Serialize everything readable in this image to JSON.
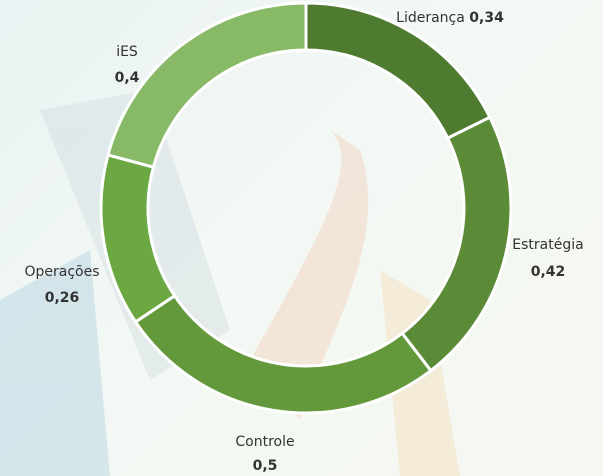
{
  "chart_data": {
    "type": "donut",
    "categories": [
      "Liderança",
      "Estratégia",
      "Controle",
      "Operações",
      "iES"
    ],
    "values": [
      0.34,
      0.42,
      0.5,
      0.26,
      0.4
    ],
    "value_labels": [
      "0,34",
      "0,42",
      "0,5",
      "0,26",
      "0,4"
    ],
    "colors": [
      "#4f7b31",
      "#5b8b36",
      "#64993b",
      "#6ba842",
      "#87b967"
    ]
  }
}
